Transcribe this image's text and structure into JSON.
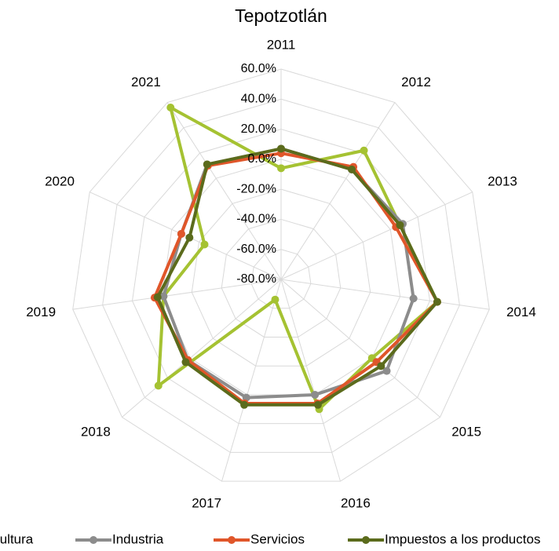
{
  "chart_data": {
    "type": "radar",
    "title": "Tepotzotlán",
    "categories": [
      "2011",
      "2012",
      "2013",
      "2014",
      "2015",
      "2016",
      "2017",
      "2018",
      "2019",
      "2020",
      "2021"
    ],
    "series": [
      {
        "name": "Agricultura",
        "color": "#a5c232",
        "values": [
          -6,
          22,
          7,
          25,
          0,
          10,
          -66,
          28,
          -1,
          -24,
          56
        ]
      },
      {
        "name": "Industria",
        "color": "#8c8c8c",
        "values": [
          7,
          7,
          9,
          9,
          13,
          0,
          2,
          2,
          -1,
          -7,
          11
        ]
      },
      {
        "name": "Servicios",
        "color": "#e0562a",
        "values": [
          4,
          9,
          4,
          25,
          4,
          6,
          6,
          2,
          5,
          -7,
          10
        ]
      },
      {
        "name": "Impuestos a los productos",
        "color": "#5b6b1c",
        "values": [
          7,
          7,
          7,
          25,
          8,
          7,
          7,
          4,
          3,
          -13,
          11
        ]
      }
    ],
    "ylim": [
      -80,
      60
    ],
    "yticks": [
      {
        "value": -80,
        "label": "-80.0%"
      },
      {
        "value": -60,
        "label": "-60.0%"
      },
      {
        "value": -40,
        "label": "-40.0%"
      },
      {
        "value": -20,
        "label": "-20.0%"
      },
      {
        "value": 0,
        "label": "0.0%"
      },
      {
        "value": 20,
        "label": "20.0%"
      },
      {
        "value": 40,
        "label": "40.0%"
      },
      {
        "value": 60,
        "label": "60.0%"
      }
    ],
    "grid": true,
    "legend": "bottom"
  }
}
